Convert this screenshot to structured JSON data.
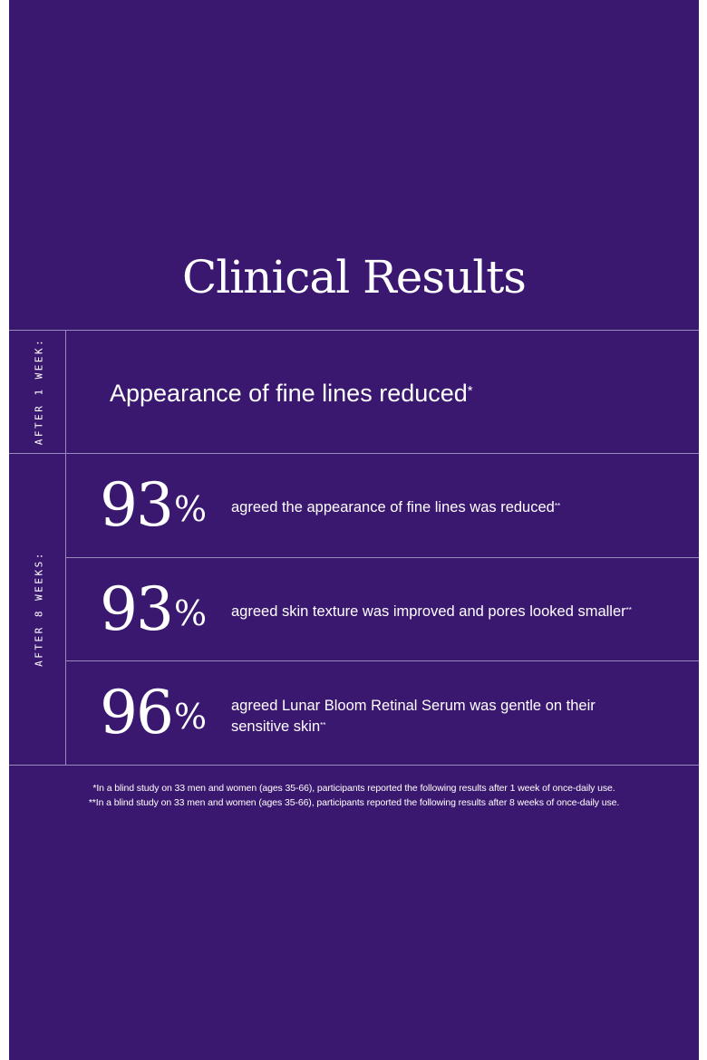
{
  "title": "Clinical Results",
  "week1": {
    "label": "AFTER 1 WEEK:",
    "text": "Appearance of fine lines reduced",
    "mark": "*"
  },
  "week8": {
    "label": "AFTER 8 WEEKS:",
    "stats": [
      {
        "number": "93",
        "percent_sign": "%",
        "text": "agreed the appearance of fine lines was reduced",
        "mark": "**"
      },
      {
        "number": "93",
        "percent_sign": "%",
        "text": "agreed skin texture was improved and pores looked smaller",
        "mark": "**"
      },
      {
        "number": "96",
        "percent_sign": "%",
        "text": "agreed Lunar Bloom Retinal Serum was gentle on their sensitive skin",
        "mark": "**"
      }
    ]
  },
  "footnotes": [
    "*In a blind study on 33 men and women (ages 35-66), participants reported the following results after 1 week of once-daily use.",
    "**In a blind study on 33 men and women (ages 35-66), participants reported the following results after 8 weeks of once-daily use."
  ],
  "colors": {
    "background": "#3b1870",
    "text": "#ffffff",
    "divider": "#9a88bf"
  }
}
